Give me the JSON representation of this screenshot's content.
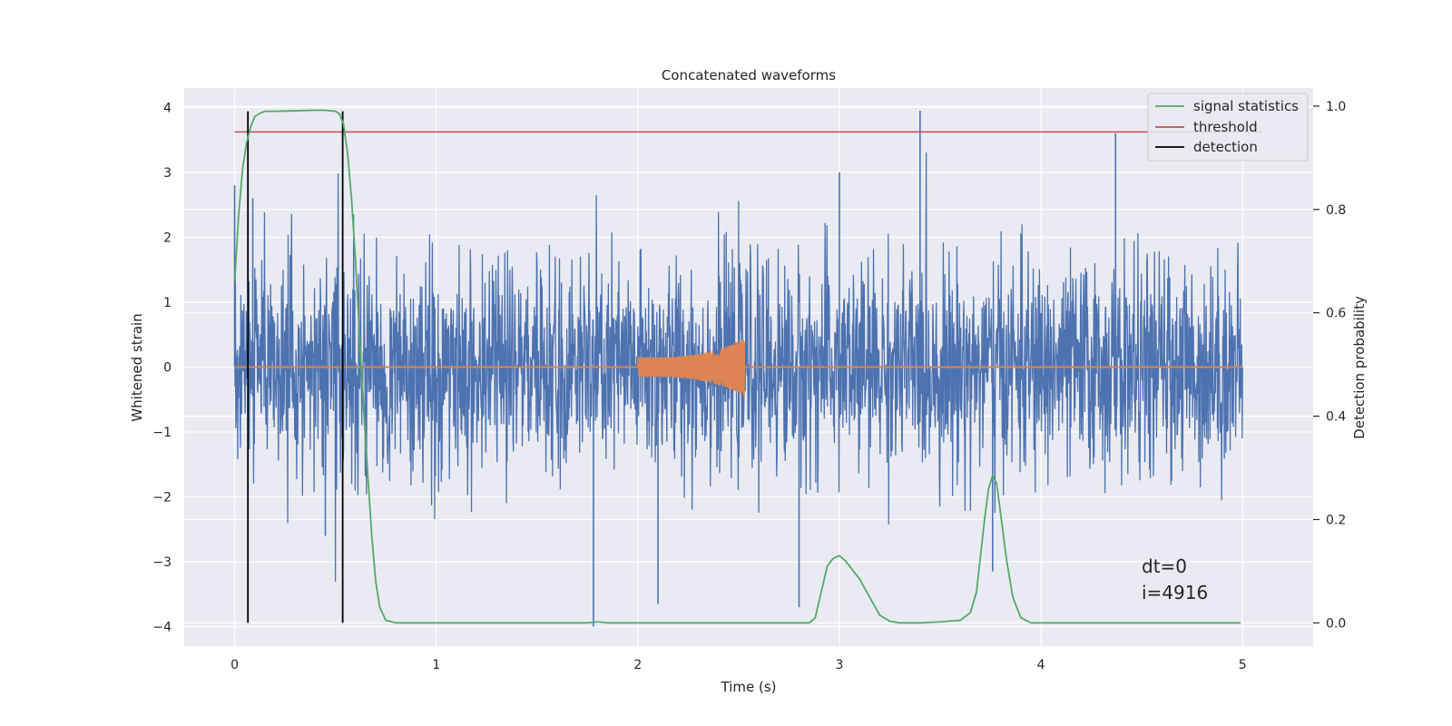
{
  "chart_data": {
    "type": "line",
    "title": "Concatenated waveforms",
    "xlabel": "Time (s)",
    "ylabel": "Whitened strain",
    "y2label": "Detection probability",
    "xlim": [
      -0.25,
      5.35
    ],
    "ylim": [
      -4.3,
      4.3
    ],
    "y2lim": [
      -0.045,
      1.035
    ],
    "xticks": [
      0,
      1,
      2,
      3,
      4,
      5
    ],
    "yticks": [
      -4,
      -3,
      -2,
      -1,
      0,
      1,
      2,
      3,
      4
    ],
    "y2ticks": [
      0.0,
      0.2,
      0.4,
      0.6,
      0.8,
      1.0
    ],
    "grid": true,
    "legend_position": "top-right",
    "annotations": [
      "dt=0",
      "i=4916"
    ],
    "colors": {
      "strain": "#4c72b0",
      "template": "#dd8452",
      "statistic": "#55a868",
      "threshold": "#c44e52",
      "detection": "#000000",
      "axes_bg": "#eaeaf2",
      "grid": "#ffffff"
    },
    "series": [
      {
        "name": "signal statistics",
        "axis": "right",
        "x": [
          0.0,
          0.02,
          0.04,
          0.06,
          0.08,
          0.1,
          0.12,
          0.15,
          0.2,
          0.3,
          0.4,
          0.45,
          0.5,
          0.52,
          0.54,
          0.56,
          0.58,
          0.6,
          0.62,
          0.65,
          0.68,
          0.7,
          0.72,
          0.75,
          0.8,
          1.0,
          1.5,
          1.75,
          1.8,
          1.85,
          2.0,
          2.5,
          2.85,
          2.88,
          2.91,
          2.94,
          2.97,
          3.0,
          3.03,
          3.06,
          3.1,
          3.15,
          3.2,
          3.25,
          3.3,
          3.4,
          3.5,
          3.6,
          3.65,
          3.68,
          3.7,
          3.72,
          3.74,
          3.76,
          3.78,
          3.8,
          3.83,
          3.86,
          3.9,
          3.95,
          4.0,
          4.5,
          4.99
        ],
        "values": [
          0.66,
          0.79,
          0.88,
          0.93,
          0.96,
          0.98,
          0.985,
          0.99,
          0.99,
          0.991,
          0.992,
          0.992,
          0.99,
          0.985,
          0.965,
          0.91,
          0.82,
          0.7,
          0.55,
          0.35,
          0.17,
          0.08,
          0.03,
          0.005,
          0.0,
          0.0,
          0.0,
          0.0,
          0.002,
          0.0,
          0.0,
          0.0,
          0.0,
          0.01,
          0.06,
          0.11,
          0.125,
          0.13,
          0.12,
          0.105,
          0.085,
          0.05,
          0.015,
          0.003,
          0.0,
          0.0,
          0.002,
          0.005,
          0.02,
          0.06,
          0.13,
          0.2,
          0.26,
          0.285,
          0.27,
          0.21,
          0.12,
          0.05,
          0.01,
          0.0,
          0.0,
          0.0,
          0.0
        ]
      },
      {
        "name": "threshold",
        "axis": "right",
        "x": [
          0.0,
          5.1
        ],
        "values": [
          0.95,
          0.95
        ]
      },
      {
        "name": "detection",
        "axis": "right",
        "x": [
          0.066,
          0.536
        ],
        "values": [
          0.0,
          0.99
        ]
      }
    ],
    "strain": {
      "x_range": [
        0.0,
        5.0
      ],
      "envelope_1sigma": 0.8,
      "peaks": [
        {
          "x": 0.0,
          "y": 2.8
        },
        {
          "x": 0.09,
          "y": 2.6
        },
        {
          "x": 0.45,
          "y": -2.6
        },
        {
          "x": 1.78,
          "y": -4.0
        },
        {
          "x": 2.1,
          "y": -3.65
        },
        {
          "x": 2.8,
          "y": -3.7
        },
        {
          "x": 3.0,
          "y": 3.0
        },
        {
          "x": 3.4,
          "y": 3.95
        },
        {
          "x": 3.76,
          "y": -3.15
        },
        {
          "x": 4.37,
          "y": 3.6
        }
      ]
    },
    "template": {
      "x_range": [
        2.0,
        2.53
      ],
      "amp_start": 0.15,
      "amp_end": 0.45
    }
  }
}
